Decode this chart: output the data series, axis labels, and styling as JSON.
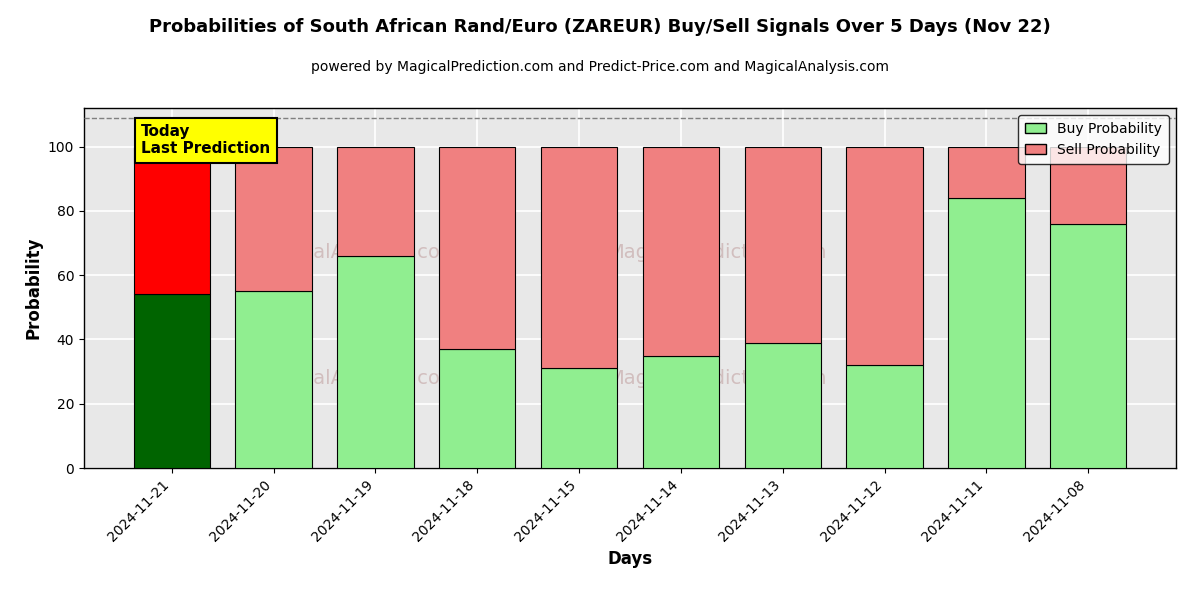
{
  "title": "Probabilities of South African Rand/Euro (ZAREUR) Buy/Sell Signals Over 5 Days (Nov 22)",
  "subtitle": "powered by MagicalPrediction.com and Predict-Price.com and MagicalAnalysis.com",
  "xlabel": "Days",
  "ylabel": "Probability",
  "categories": [
    "2024-11-21",
    "2024-11-20",
    "2024-11-19",
    "2024-11-18",
    "2024-11-15",
    "2024-11-14",
    "2024-11-13",
    "2024-11-12",
    "2024-11-11",
    "2024-11-08"
  ],
  "buy_values": [
    54,
    55,
    66,
    37,
    31,
    35,
    39,
    32,
    84,
    76
  ],
  "sell_values": [
    46,
    45,
    34,
    63,
    69,
    65,
    61,
    68,
    16,
    24
  ],
  "buy_colors": [
    "#006400",
    "#90EE90",
    "#90EE90",
    "#90EE90",
    "#90EE90",
    "#90EE90",
    "#90EE90",
    "#90EE90",
    "#90EE90",
    "#90EE90"
  ],
  "sell_colors": [
    "#FF0000",
    "#F08080",
    "#F08080",
    "#F08080",
    "#F08080",
    "#F08080",
    "#F08080",
    "#F08080",
    "#F08080",
    "#F08080"
  ],
  "legend_buy_color": "#90EE90",
  "legend_sell_color": "#F08080",
  "today_box_color": "#FFFF00",
  "today_label": "Today\nLast Prediction",
  "ylim": [
    0,
    112
  ],
  "yticks": [
    0,
    20,
    40,
    60,
    80,
    100
  ],
  "dashed_line_y": 109,
  "background_color": "#ffffff",
  "plot_bg_color": "#e8e8e8",
  "grid_color": "#ffffff",
  "title_fontsize": 13,
  "subtitle_fontsize": 10,
  "axis_label_fontsize": 12,
  "tick_fontsize": 10
}
